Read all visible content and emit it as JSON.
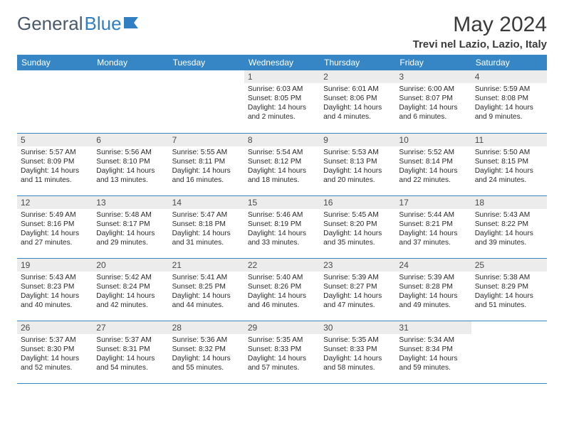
{
  "brand": {
    "part1": "General",
    "part2": "Blue"
  },
  "title": "May 2024",
  "location": "Trevi nel Lazio, Lazio, Italy",
  "colors": {
    "header_bg": "#3686c6",
    "header_fg": "#ffffff",
    "daynum_bg": "#ececec",
    "text": "#2a2a2a",
    "logo_gray": "#4a5a6a",
    "logo_blue": "#2f7fc2",
    "rule": "#3686c6"
  },
  "fonts": {
    "title_pt": 30,
    "location_pt": 15,
    "header_pt": 12,
    "daynum_pt": 12,
    "body_pt": 10.2
  },
  "weekdays": [
    "Sunday",
    "Monday",
    "Tuesday",
    "Wednesday",
    "Thursday",
    "Friday",
    "Saturday"
  ],
  "grid": {
    "rows": 5,
    "cols": 7,
    "first_weekday_index": 3,
    "days_in_month": 31
  },
  "days": [
    {
      "n": 1,
      "sunrise": "6:03 AM",
      "sunset": "8:05 PM",
      "daylight": "14 hours and 2 minutes."
    },
    {
      "n": 2,
      "sunrise": "6:01 AM",
      "sunset": "8:06 PM",
      "daylight": "14 hours and 4 minutes."
    },
    {
      "n": 3,
      "sunrise": "6:00 AM",
      "sunset": "8:07 PM",
      "daylight": "14 hours and 6 minutes."
    },
    {
      "n": 4,
      "sunrise": "5:59 AM",
      "sunset": "8:08 PM",
      "daylight": "14 hours and 9 minutes."
    },
    {
      "n": 5,
      "sunrise": "5:57 AM",
      "sunset": "8:09 PM",
      "daylight": "14 hours and 11 minutes."
    },
    {
      "n": 6,
      "sunrise": "5:56 AM",
      "sunset": "8:10 PM",
      "daylight": "14 hours and 13 minutes."
    },
    {
      "n": 7,
      "sunrise": "5:55 AM",
      "sunset": "8:11 PM",
      "daylight": "14 hours and 16 minutes."
    },
    {
      "n": 8,
      "sunrise": "5:54 AM",
      "sunset": "8:12 PM",
      "daylight": "14 hours and 18 minutes."
    },
    {
      "n": 9,
      "sunrise": "5:53 AM",
      "sunset": "8:13 PM",
      "daylight": "14 hours and 20 minutes."
    },
    {
      "n": 10,
      "sunrise": "5:52 AM",
      "sunset": "8:14 PM",
      "daylight": "14 hours and 22 minutes."
    },
    {
      "n": 11,
      "sunrise": "5:50 AM",
      "sunset": "8:15 PM",
      "daylight": "14 hours and 24 minutes."
    },
    {
      "n": 12,
      "sunrise": "5:49 AM",
      "sunset": "8:16 PM",
      "daylight": "14 hours and 27 minutes."
    },
    {
      "n": 13,
      "sunrise": "5:48 AM",
      "sunset": "8:17 PM",
      "daylight": "14 hours and 29 minutes."
    },
    {
      "n": 14,
      "sunrise": "5:47 AM",
      "sunset": "8:18 PM",
      "daylight": "14 hours and 31 minutes."
    },
    {
      "n": 15,
      "sunrise": "5:46 AM",
      "sunset": "8:19 PM",
      "daylight": "14 hours and 33 minutes."
    },
    {
      "n": 16,
      "sunrise": "5:45 AM",
      "sunset": "8:20 PM",
      "daylight": "14 hours and 35 minutes."
    },
    {
      "n": 17,
      "sunrise": "5:44 AM",
      "sunset": "8:21 PM",
      "daylight": "14 hours and 37 minutes."
    },
    {
      "n": 18,
      "sunrise": "5:43 AM",
      "sunset": "8:22 PM",
      "daylight": "14 hours and 39 minutes."
    },
    {
      "n": 19,
      "sunrise": "5:43 AM",
      "sunset": "8:23 PM",
      "daylight": "14 hours and 40 minutes."
    },
    {
      "n": 20,
      "sunrise": "5:42 AM",
      "sunset": "8:24 PM",
      "daylight": "14 hours and 42 minutes."
    },
    {
      "n": 21,
      "sunrise": "5:41 AM",
      "sunset": "8:25 PM",
      "daylight": "14 hours and 44 minutes."
    },
    {
      "n": 22,
      "sunrise": "5:40 AM",
      "sunset": "8:26 PM",
      "daylight": "14 hours and 46 minutes."
    },
    {
      "n": 23,
      "sunrise": "5:39 AM",
      "sunset": "8:27 PM",
      "daylight": "14 hours and 47 minutes."
    },
    {
      "n": 24,
      "sunrise": "5:39 AM",
      "sunset": "8:28 PM",
      "daylight": "14 hours and 49 minutes."
    },
    {
      "n": 25,
      "sunrise": "5:38 AM",
      "sunset": "8:29 PM",
      "daylight": "14 hours and 51 minutes."
    },
    {
      "n": 26,
      "sunrise": "5:37 AM",
      "sunset": "8:30 PM",
      "daylight": "14 hours and 52 minutes."
    },
    {
      "n": 27,
      "sunrise": "5:37 AM",
      "sunset": "8:31 PM",
      "daylight": "14 hours and 54 minutes."
    },
    {
      "n": 28,
      "sunrise": "5:36 AM",
      "sunset": "8:32 PM",
      "daylight": "14 hours and 55 minutes."
    },
    {
      "n": 29,
      "sunrise": "5:35 AM",
      "sunset": "8:33 PM",
      "daylight": "14 hours and 57 minutes."
    },
    {
      "n": 30,
      "sunrise": "5:35 AM",
      "sunset": "8:33 PM",
      "daylight": "14 hours and 58 minutes."
    },
    {
      "n": 31,
      "sunrise": "5:34 AM",
      "sunset": "8:34 PM",
      "daylight": "14 hours and 59 minutes."
    }
  ],
  "labels": {
    "sunrise": "Sunrise:",
    "sunset": "Sunset:",
    "daylight": "Daylight:"
  }
}
